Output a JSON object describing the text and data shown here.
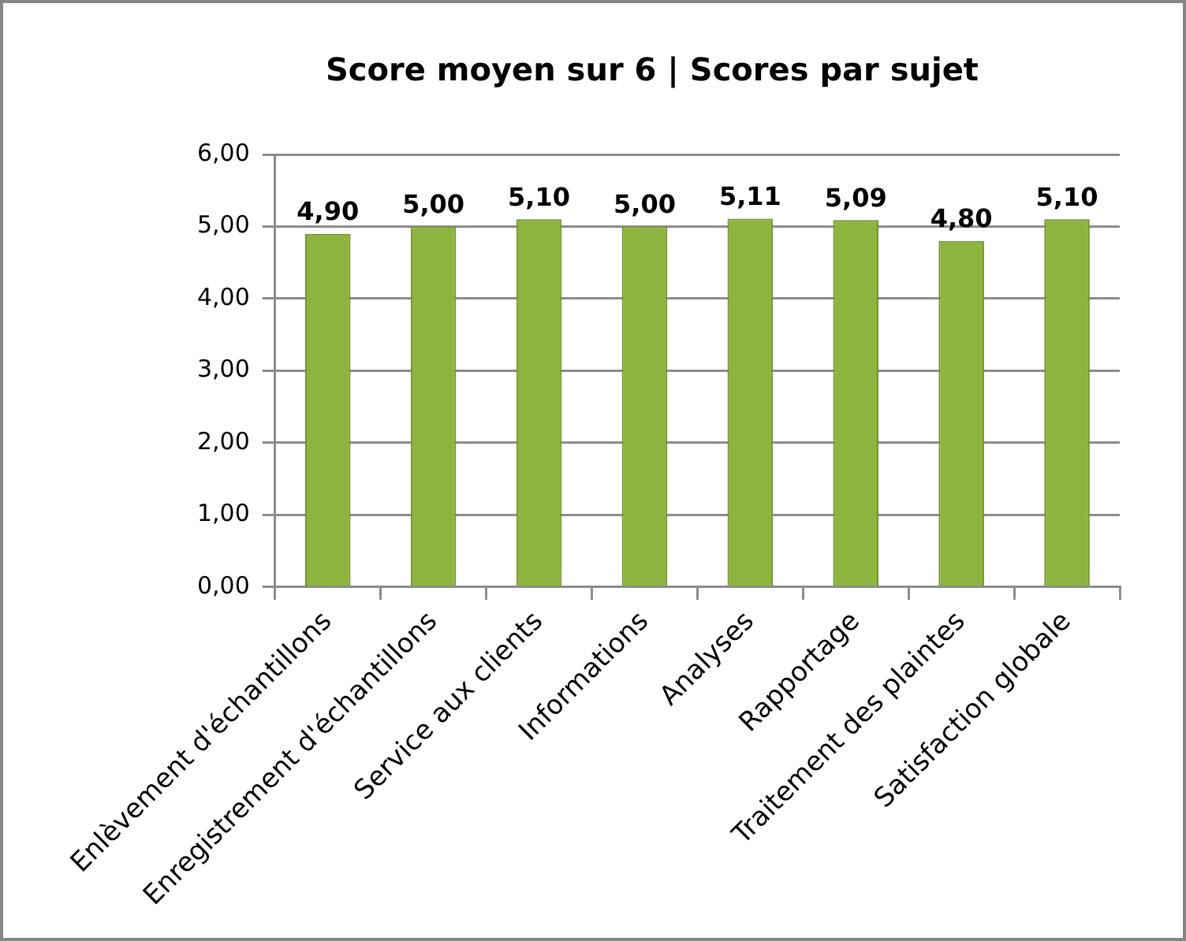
{
  "chart_data": {
    "type": "bar",
    "title": "Score moyen sur 6 | Scores par sujet",
    "categories": [
      "Enlèvement d'échantillons",
      "Enregistrement d'échantillons",
      "Service aux clients",
      "Informations",
      "Analyses",
      "Rapportage",
      "Traitement des plaintes",
      "Satisfaction globale"
    ],
    "values": [
      4.9,
      5.0,
      5.1,
      5.0,
      5.11,
      5.09,
      4.8,
      5.1
    ],
    "value_labels": [
      "4,90",
      "5,00",
      "5,10",
      "5,00",
      "5,11",
      "5,09",
      "4,80",
      "5,10"
    ],
    "color": "#8db43e",
    "ylim": [
      0,
      6
    ],
    "yticks": [
      {
        "value": 0,
        "label": "0,00"
      },
      {
        "value": 1,
        "label": "1,00"
      },
      {
        "value": 2,
        "label": "2,00"
      },
      {
        "value": 3,
        "label": "3,00"
      },
      {
        "value": 4,
        "label": "4,00"
      },
      {
        "value": 5,
        "label": "5,00"
      },
      {
        "value": 6,
        "label": "6,00"
      }
    ],
    "grid": "y"
  }
}
